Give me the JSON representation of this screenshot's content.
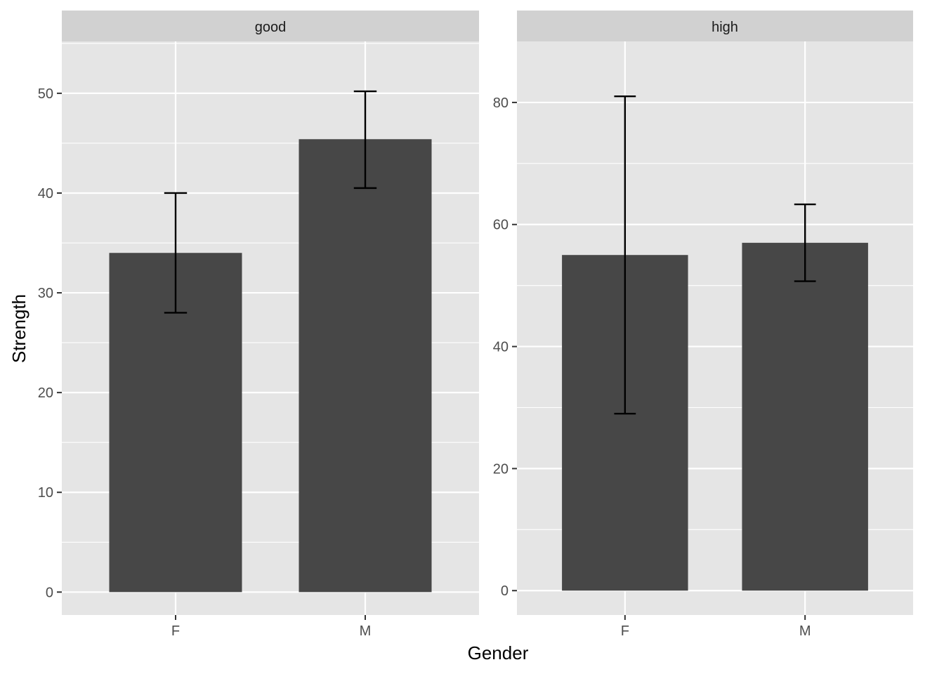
{
  "chart_data": {
    "type": "bar",
    "xlabel": "Gender",
    "ylabel": "Strength",
    "categories": [
      "F",
      "M"
    ],
    "grid": true,
    "legend": "none",
    "colors": {
      "bar": "#474747",
      "panel_bg": "#e5e5e5",
      "strip_bg": "#d1d1d1",
      "grid": "#ffffff",
      "errorbar": "#000000"
    },
    "panels": [
      {
        "facet": "good",
        "ylim": [
          -2.3,
          55.2
        ],
        "yticks": [
          0,
          10,
          20,
          30,
          40,
          50
        ],
        "values": [
          34.0,
          45.4
        ],
        "error_low": [
          28.0,
          40.5
        ],
        "error_high": [
          40.0,
          50.2
        ]
      },
      {
        "facet": "high",
        "ylim": [
          -4.0,
          90.0
        ],
        "yticks": [
          0,
          20,
          40,
          60,
          80
        ],
        "values": [
          55.0,
          57.0
        ],
        "error_low": [
          29.0,
          50.7
        ],
        "error_high": [
          81.0,
          63.3
        ]
      }
    ]
  }
}
